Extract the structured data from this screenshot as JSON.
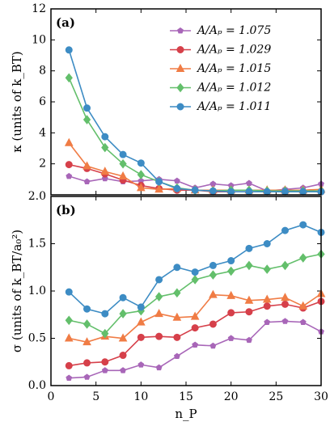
{
  "chart_data": [
    {
      "type": "line",
      "panel_label": "(a)",
      "ylabel": "κ  (units of k_BT)",
      "x": [
        2,
        4,
        6,
        8,
        10,
        12,
        14,
        16,
        18,
        20,
        22,
        24,
        26,
        28,
        30
      ],
      "xlim": [
        0,
        30
      ],
      "xticks": [
        0,
        5,
        10,
        15,
        20,
        25,
        30
      ],
      "ylim": [
        0,
        12
      ],
      "yticks": [
        2,
        4,
        6,
        8,
        10,
        12
      ],
      "legend": "upper right",
      "series": [
        {
          "name": "A/Aₚ = 1.075",
          "color": "#a866b8",
          "marker": "pentagon",
          "values": [
            1.2,
            0.85,
            1.05,
            0.85,
            0.9,
            1.0,
            0.9,
            0.45,
            0.7,
            0.6,
            0.75,
            0.25,
            0.35,
            0.45,
            0.7
          ]
        },
        {
          "name": "A/Aₚ = 1.029",
          "color": "#d6404a",
          "marker": "circle",
          "values": [
            1.95,
            1.7,
            1.35,
            0.95,
            0.6,
            0.4,
            0.3,
            0.3,
            0.2,
            0.2,
            0.2,
            0.2,
            0.2,
            0.2,
            0.2
          ]
        },
        {
          "name": "A/Aₚ = 1.015",
          "color": "#f07c45",
          "marker": "triangle",
          "values": [
            3.35,
            1.85,
            1.5,
            1.2,
            0.45,
            0.35,
            0.4,
            0.3,
            0.3,
            0.3,
            0.3,
            0.3,
            0.3,
            0.3,
            0.35
          ]
        },
        {
          "name": "A/Aₚ = 1.012",
          "color": "#63bf6b",
          "marker": "diamond",
          "values": [
            7.55,
            4.85,
            3.05,
            2.0,
            1.3,
            0.85,
            0.45,
            0.3,
            0.25,
            0.3,
            0.3,
            0.25,
            0.25,
            0.25,
            0.25
          ]
        },
        {
          "name": "A/Aₚ = 1.011",
          "color": "#3d8cc4",
          "marker": "circle",
          "values": [
            9.35,
            5.6,
            3.75,
            2.6,
            2.05,
            0.85,
            0.4,
            0.3,
            0.25,
            0.2,
            0.2,
            0.2,
            0.2,
            0.2,
            0.2
          ]
        }
      ]
    },
    {
      "type": "line",
      "panel_label": "(b)",
      "ylabel": "σ  (units of k_BT/a₀²)",
      "xlabel": "n_P",
      "x": [
        2,
        4,
        6,
        8,
        10,
        12,
        14,
        16,
        18,
        20,
        22,
        24,
        26,
        28,
        30
      ],
      "xlim": [
        0,
        30
      ],
      "xticks": [
        0,
        5,
        10,
        15,
        20,
        25,
        30
      ],
      "ylim": [
        0,
        2.0
      ],
      "yticks": [
        {
          "value": 0,
          "label": "0.0"
        },
        0.5,
        {
          "value": 1,
          "label": "1.0"
        },
        1.5,
        {
          "value": 2,
          "label": "2.0"
        }
      ],
      "series": [
        {
          "name": "A/Aₚ = 1.075",
          "color": "#a866b8",
          "marker": "pentagon",
          "values": [
            0.08,
            0.09,
            0.16,
            0.16,
            0.22,
            0.19,
            0.31,
            0.43,
            0.42,
            0.5,
            0.48,
            0.67,
            0.68,
            0.67,
            0.57
          ]
        },
        {
          "name": "A/Aₚ = 1.029",
          "color": "#d6404a",
          "marker": "circle",
          "values": [
            0.21,
            0.24,
            0.25,
            0.32,
            0.51,
            0.52,
            0.51,
            0.61,
            0.65,
            0.77,
            0.78,
            0.84,
            0.86,
            0.82,
            0.89
          ]
        },
        {
          "name": "A/Aₚ = 1.015",
          "color": "#f07c45",
          "marker": "triangle",
          "values": [
            0.5,
            0.46,
            0.52,
            0.5,
            0.67,
            0.76,
            0.72,
            0.73,
            0.96,
            0.95,
            0.9,
            0.91,
            0.93,
            0.84,
            0.97
          ]
        },
        {
          "name": "A/Aₚ = 1.012",
          "color": "#63bf6b",
          "marker": "diamond",
          "values": [
            0.69,
            0.65,
            0.55,
            0.76,
            0.79,
            0.94,
            0.98,
            1.12,
            1.17,
            1.21,
            1.27,
            1.23,
            1.27,
            1.35,
            1.39
          ]
        },
        {
          "name": "A/Aₚ = 1.011",
          "color": "#3d8cc4",
          "marker": "circle",
          "values": [
            0.99,
            0.81,
            0.76,
            0.93,
            0.83,
            1.12,
            1.25,
            1.2,
            1.27,
            1.32,
            1.45,
            1.5,
            1.64,
            1.7,
            1.62
          ]
        }
      ]
    }
  ]
}
